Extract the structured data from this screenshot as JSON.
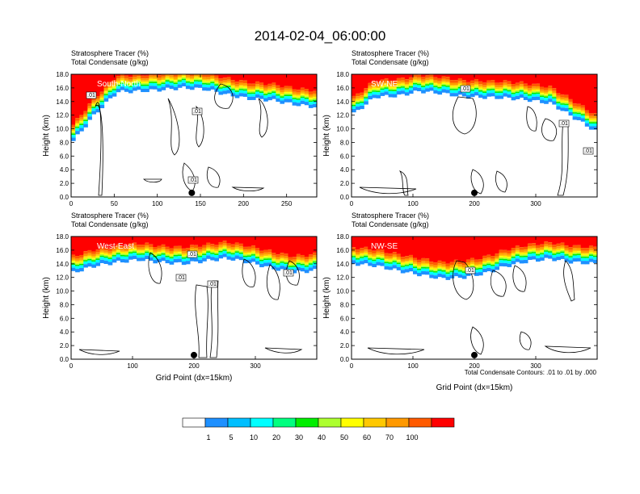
{
  "figure": {
    "title": "2014-02-04_06:00:00",
    "x_label": "Grid Point (dx=15km)",
    "contour_note": "Total Condensate Contours: .01 to .01 by .000",
    "colorbar": {
      "labels": [
        "1",
        "5",
        "10",
        "20",
        "30",
        "40",
        "50",
        "60",
        "70",
        "100"
      ],
      "colors": [
        "#ffffff",
        "#1e90ff",
        "#00bfff",
        "#00ffff",
        "#00ff7f",
        "#00ee00",
        "#adff2f",
        "#ffff00",
        "#ffc800",
        "#ff9900",
        "#ff5a00",
        "#ff0000"
      ]
    }
  },
  "chart_data": [
    {
      "type": "heatmap",
      "region": "South-North",
      "line1": "Stratosphere Tracer   (%)",
      "line2": "Total Condensate   (g/kg)",
      "ylabel": "Height (km)",
      "xlim": [
        0,
        285
      ],
      "ylim": [
        0,
        18
      ],
      "xticks": [
        "0",
        "50",
        "100",
        "150",
        "200",
        "250"
      ],
      "xtick_values": [
        0,
        50,
        100,
        150,
        200,
        250
      ],
      "yticks": [
        "0.0",
        "2.0",
        "4.0",
        "6.0",
        "8.0",
        "10.0",
        "12.0",
        "14.0",
        "16.0",
        "18.0"
      ],
      "tropopause_km": [
        9,
        13,
        16.2,
        16.3,
        16.5,
        16.8,
        16.6,
        15.8,
        15.2,
        15.0,
        14.4,
        14.0
      ],
      "contour_labels": [
        ".01",
        ".01",
        ".01"
      ],
      "marker_x": 140
    },
    {
      "type": "heatmap",
      "region": "SW-NE",
      "line1": "Stratosphere Tracer   (%)",
      "line2": "Total Condensate   (g/kg)",
      "ylabel": "Height (km)",
      "xlim": [
        0,
        400
      ],
      "ylim": [
        0,
        18
      ],
      "xticks": [
        "0",
        "100",
        "200",
        "300"
      ],
      "xtick_values": [
        0,
        100,
        200,
        300
      ],
      "yticks": [
        "0.0",
        "2.0",
        "4.0",
        "6.0",
        "8.0",
        "10.0",
        "12.0",
        "14.0",
        "16.0",
        "18.0"
      ],
      "tropopause_km": [
        13,
        15.5,
        15.6,
        16.3,
        16.0,
        15.5,
        15.4,
        15.3,
        15.0,
        14.5,
        12.5,
        10.5
      ],
      "contour_labels": [
        ".01",
        ".01",
        ".01"
      ],
      "marker_x": 200
    },
    {
      "type": "heatmap",
      "region": "West-East",
      "line1": "Stratosphere Tracer   (%)",
      "line2": "Total Condensate   (g/kg)",
      "ylabel": "Height (km)",
      "xlim": [
        0,
        400
      ],
      "ylim": [
        0,
        18
      ],
      "xticks": [
        "0",
        "100",
        "200",
        "300"
      ],
      "xtick_values": [
        0,
        100,
        200,
        300
      ],
      "yticks": [
        "0.0",
        "2.0",
        "4.0",
        "6.0",
        "8.0",
        "10.0",
        "12.0",
        "14.0",
        "16.0",
        "18.0"
      ],
      "tropopause_km": [
        13.5,
        14.5,
        15.0,
        15.4,
        15.0,
        14.8,
        15.2,
        15.6,
        15.0,
        14.2,
        13.5,
        13.8
      ],
      "contour_labels": [
        ".01",
        ".01",
        ".01",
        ".01"
      ],
      "marker_x": 200
    },
    {
      "type": "heatmap",
      "region": "NW-SE",
      "line1": "Stratosphere Tracer   (%)",
      "line2": "Total Condensate   (g/kg)",
      "ylabel": "Height (km)",
      "xlim": [
        0,
        400
      ],
      "ylim": [
        0,
        18
      ],
      "xticks": [
        "0",
        "100",
        "200",
        "300"
      ],
      "xtick_values": [
        0,
        100,
        200,
        300
      ],
      "yticks": [
        "0.0",
        "2.0",
        "4.0",
        "6.0",
        "8.0",
        "10.0",
        "12.0",
        "14.0",
        "16.0",
        "18.0"
      ],
      "tropopause_km": [
        14.8,
        14.5,
        13.8,
        13.2,
        12.6,
        12.8,
        13.4,
        14.5,
        15.2,
        15.5,
        15.0,
        14.8
      ],
      "contour_labels": [
        ".01"
      ],
      "marker_x": 200
    }
  ]
}
